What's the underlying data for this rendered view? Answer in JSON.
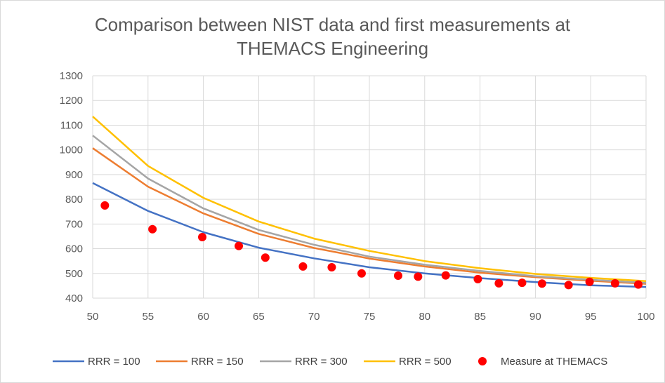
{
  "chart_data": {
    "type": "line",
    "title_lines": [
      "Comparison between NIST data and first measurements at",
      "THEMACS Engineering"
    ],
    "xlabel": "",
    "ylabel": "",
    "xlim": [
      50,
      100
    ],
    "ylim": [
      400,
      1300
    ],
    "x_ticks": [
      50,
      55,
      60,
      65,
      70,
      75,
      80,
      85,
      90,
      95,
      100
    ],
    "y_ticks": [
      400,
      500,
      600,
      700,
      800,
      900,
      1000,
      1100,
      1200,
      1300
    ],
    "grid": true,
    "legend_position": "bottom",
    "series": [
      {
        "name": "RRR = 100",
        "color": "#4472C4",
        "kind": "line",
        "x": [
          50,
          55,
          60,
          65,
          70,
          75,
          80,
          85,
          90,
          95,
          100
        ],
        "y": [
          866,
          753,
          667,
          604,
          561,
          525,
          500,
          481,
          465,
          452,
          445
        ]
      },
      {
        "name": "RRR = 150",
        "color": "#ED7D31",
        "kind": "line",
        "x": [
          50,
          55,
          60,
          65,
          70,
          75,
          80,
          85,
          90,
          95,
          100
        ],
        "y": [
          1007,
          851,
          743,
          660,
          603,
          560,
          528,
          503,
          485,
          470,
          458
        ]
      },
      {
        "name": "RRR = 300",
        "color": "#A5A5A5",
        "kind": "line",
        "x": [
          50,
          55,
          60,
          65,
          70,
          75,
          80,
          85,
          90,
          95,
          100
        ],
        "y": [
          1058,
          884,
          763,
          676,
          616,
          568,
          535,
          510,
          489,
          474,
          462
        ]
      },
      {
        "name": "RRR = 500",
        "color": "#FFC000",
        "kind": "line",
        "x": [
          50,
          55,
          60,
          65,
          70,
          75,
          80,
          85,
          90,
          95,
          100
        ],
        "y": [
          1135,
          935,
          806,
          710,
          641,
          591,
          550,
          521,
          498,
          482,
          469
        ]
      },
      {
        "name": "Measure at THEMACS",
        "color": "#FF0000",
        "kind": "scatter",
        "x": [
          51.1,
          55.4,
          59.9,
          63.2,
          65.6,
          69.0,
          71.6,
          74.3,
          77.6,
          79.4,
          81.9,
          84.8,
          86.7,
          88.8,
          90.6,
          93.0,
          94.9,
          97.2,
          99.3
        ],
        "y": [
          775,
          679,
          647,
          611,
          564,
          528,
          525,
          500,
          491,
          487,
          492,
          477,
          460,
          462,
          459,
          453,
          466,
          460,
          455
        ]
      }
    ]
  }
}
